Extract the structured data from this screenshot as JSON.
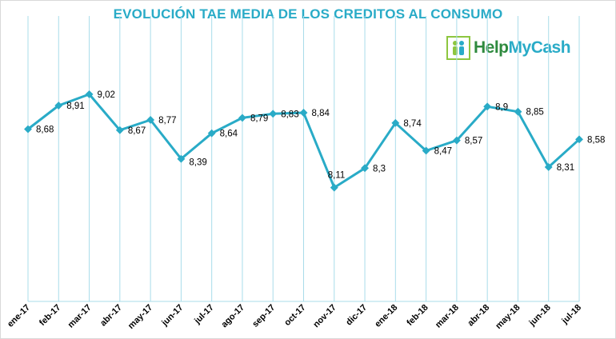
{
  "chart_data": {
    "type": "line",
    "title": "EVOLUCIÓN TAE MEDIA DE LOS CREDITOS AL CONSUMO",
    "categories": [
      "ene-17",
      "feb-17",
      "mar-17",
      "abr-17",
      "may-17",
      "jun-17",
      "jul-17",
      "ago-17",
      "sep-17",
      "oct-17",
      "nov-17",
      "dic-17",
      "ene-18",
      "feb-18",
      "mar-18",
      "abr-18",
      "may-18",
      "jun-18",
      "jul-18"
    ],
    "series": [
      {
        "values": [
          8.68,
          8.91,
          9.02,
          8.67,
          8.77,
          8.39,
          8.64,
          8.79,
          8.83,
          8.84,
          8.11,
          8.3,
          8.74,
          8.47,
          8.57,
          8.9,
          8.85,
          8.31,
          8.58
        ],
        "labels": [
          "8,68",
          "8,91",
          "9,02",
          "8,67",
          "8,77",
          "8,39",
          "8,64",
          "8,79",
          "8,83",
          "8,84",
          "8,11",
          "8,3",
          "8,74",
          "8,47",
          "8,57",
          "8,9",
          "8,85",
          "8,31",
          "8,58"
        ],
        "color": "#29abc7"
      }
    ],
    "ylim": [
      7.0,
      9.3
    ],
    "grid": "vertical",
    "xlabel": "",
    "ylabel": ""
  },
  "logo": {
    "part1": "Help",
    "part2": "MyCash",
    "color_green": "#2e8a3e",
    "color_blue": "#29abc7"
  }
}
